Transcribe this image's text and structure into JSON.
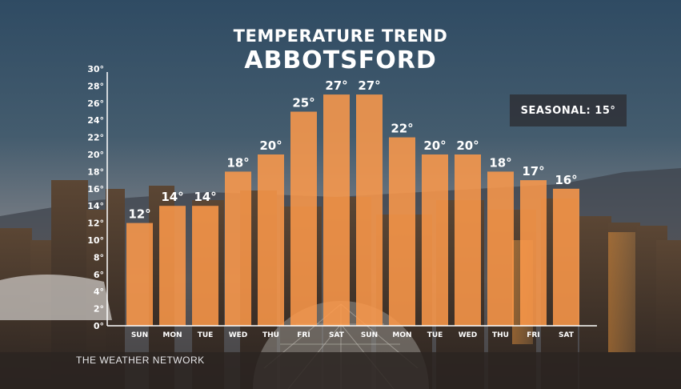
{
  "header": {
    "title": "TEMPERATURE TREND",
    "location": "ABBOTSFORD"
  },
  "badge": {
    "text": "SEASONAL: 15°"
  },
  "brand": {
    "text": "THE WEATHER NETWORK"
  },
  "colors": {
    "bar": "#ff9a4a",
    "axis": "#ffffff"
  },
  "chart_data": {
    "type": "bar",
    "categories": [
      "SUN",
      "MON",
      "TUE",
      "WED",
      "THU",
      "FRI",
      "SAT",
      "SUN",
      "MON",
      "TUE",
      "WED",
      "THU",
      "FRI",
      "SAT"
    ],
    "values": [
      12,
      14,
      14,
      18,
      20,
      25,
      27,
      27,
      22,
      20,
      20,
      18,
      17,
      16
    ],
    "value_labels": [
      "12°",
      "14°",
      "14°",
      "18°",
      "20°",
      "25°",
      "27°",
      "27°",
      "22°",
      "20°",
      "20°",
      "18°",
      "17°",
      "16°"
    ],
    "ylim": [
      0,
      30
    ],
    "yticks": [
      "0°",
      "2°",
      "4°",
      "6°",
      "8°",
      "10°",
      "12°",
      "14°",
      "16°",
      "18°",
      "20°",
      "22°",
      "24°",
      "26°",
      "28°",
      "30°"
    ],
    "title": "TEMPERATURE TREND",
    "subtitle": "ABBOTSFORD",
    "xlabel": "",
    "ylabel": "",
    "grid": false,
    "annotation": "SEASONAL: 15°"
  }
}
